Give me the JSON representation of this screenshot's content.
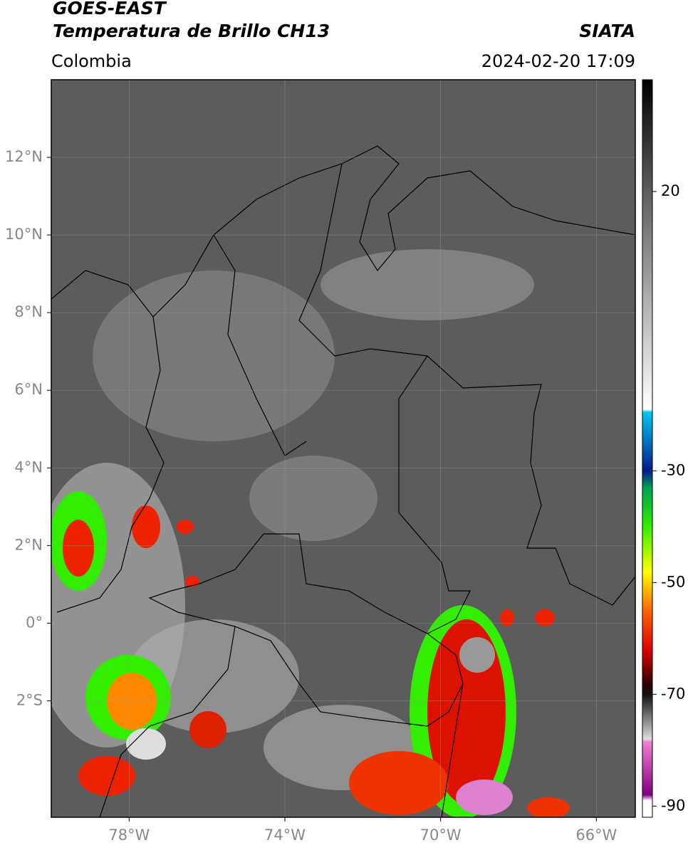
{
  "header": {
    "satellite": "GOES-EAST",
    "product": "Temperatura de Brillo CH13",
    "source": "SIATA",
    "region": "Colombia",
    "datetime": "2024-02-20 17:09"
  },
  "map": {
    "xlim": [
      -80,
      -65
    ],
    "ylim": [
      -5,
      14
    ],
    "xticks": [
      {
        "value": -78,
        "label": "78°W"
      },
      {
        "value": -74,
        "label": "74°W"
      },
      {
        "value": -70,
        "label": "70°W"
      },
      {
        "value": -66,
        "label": "66°W"
      }
    ],
    "yticks": [
      {
        "value": 12,
        "label": "12°N"
      },
      {
        "value": 10,
        "label": "10°N"
      },
      {
        "value": 8,
        "label": "8°N"
      },
      {
        "value": 6,
        "label": "6°N"
      },
      {
        "value": 4,
        "label": "4°N"
      },
      {
        "value": 2,
        "label": "2°N"
      },
      {
        "value": 0,
        "label": "0°"
      },
      {
        "value": -2,
        "label": "2°S"
      }
    ],
    "grid": true
  },
  "colorbar": {
    "lim": [
      -92,
      40
    ],
    "ticks": [
      20,
      -30,
      -50,
      -70,
      -90
    ],
    "stops": [
      {
        "value": 40,
        "color": "#000000"
      },
      {
        "value": 20,
        "color": "#5e5e5e"
      },
      {
        "value": -19,
        "color": "#ffffff"
      },
      {
        "value": -19.5,
        "color": "#00c8f0"
      },
      {
        "value": -30,
        "color": "#001a8c"
      },
      {
        "value": -33,
        "color": "#00a050"
      },
      {
        "value": -40,
        "color": "#33ee00"
      },
      {
        "value": -48,
        "color": "#ffff00"
      },
      {
        "value": -55,
        "color": "#ff6600"
      },
      {
        "value": -62,
        "color": "#dd0000"
      },
      {
        "value": -68,
        "color": "#330000"
      },
      {
        "value": -70,
        "color": "#111111"
      },
      {
        "value": -78,
        "color": "#dddddd"
      },
      {
        "value": -78.5,
        "color": "#f080d0"
      },
      {
        "value": -88,
        "color": "#800080"
      },
      {
        "value": -89,
        "color": "#ffffff"
      }
    ]
  }
}
